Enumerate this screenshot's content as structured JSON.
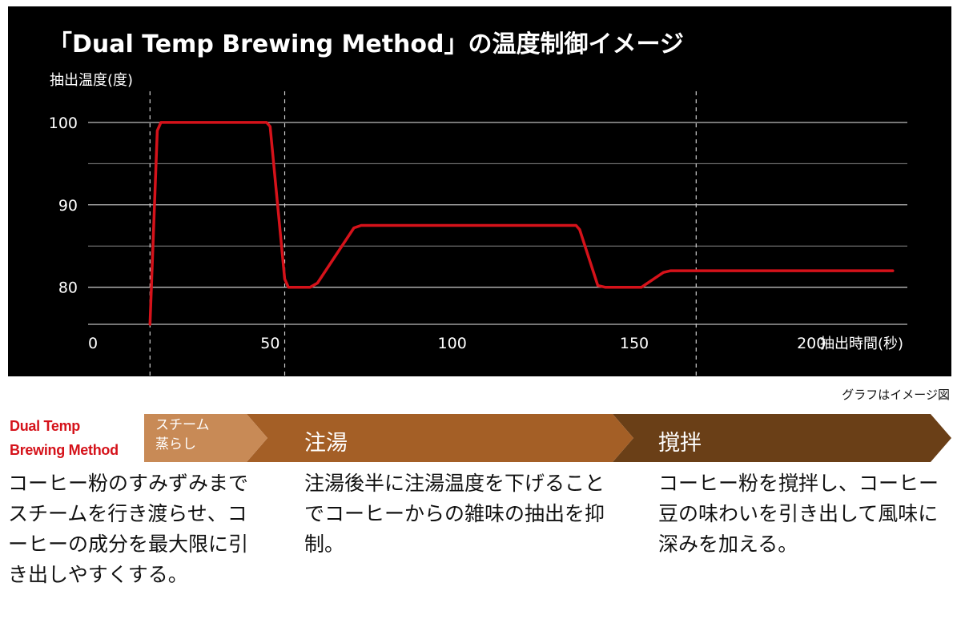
{
  "chart_data": {
    "type": "line",
    "title": "「Dual Temp Brewing Method」の温度制御イメージ",
    "ylabel": "抽出温度(度)",
    "xlabel": "抽出時間(秒)",
    "x_ticks": [
      0,
      50,
      100,
      150,
      200
    ],
    "y_ticks": [
      80,
      90,
      100
    ],
    "xlim": [
      0,
      225
    ],
    "ylim": [
      75.5,
      103
    ],
    "grid": true,
    "series": [
      {
        "x": [
          17,
          19,
          20,
          49,
          50,
          54,
          55,
          61,
          63,
          73,
          75,
          134,
          135,
          140,
          142,
          152,
          153,
          158,
          160,
          221
        ],
        "y": [
          75.5,
          99,
          100,
          100,
          99.5,
          81,
          80,
          80,
          80.5,
          87.2,
          87.5,
          87.5,
          87,
          80.2,
          80,
          80,
          80.3,
          81.8,
          82,
          82
        ],
        "color": "#d5121a"
      }
    ],
    "phase_boundaries": [
      17,
      54,
      167
    ]
  },
  "note": "グラフはイメージ図",
  "brand": {
    "line1": "Dual Temp",
    "line2": "Brewing Method"
  },
  "phases": [
    {
      "label_line1": "スチーム",
      "label_line2": "蒸らし",
      "color": "#c88a56"
    },
    {
      "label": "注湯",
      "color": "#a45f26"
    },
    {
      "label": "撹拌",
      "color": "#6a3f17"
    }
  ],
  "descriptions": [
    "コーヒー粉のすみずみまでスチームを行き渡らせ、コーヒーの成分を最大限に引き出しやすくする。",
    "注湯後半に注湯温度を下げることでコーヒーからの雑味の抽出を抑制。",
    "コーヒー粉を撹拌し、コーヒー豆の味わいを引き出して風味に深みを加える。"
  ]
}
